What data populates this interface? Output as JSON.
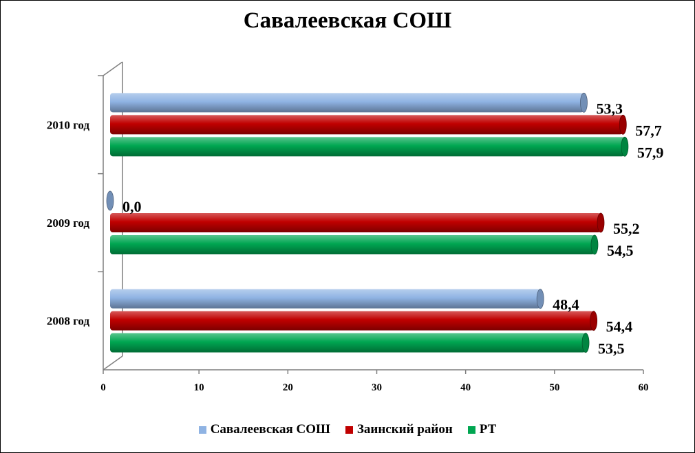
{
  "chart_data": {
    "type": "bar",
    "orientation": "horizontal",
    "title": "Савалеевская СОШ",
    "categories": [
      "2008 год",
      "2009 год",
      "2010 год"
    ],
    "series": [
      {
        "name": "Савалеевская СОШ",
        "values": [
          48.4,
          0.0,
          53.3
        ],
        "labels": [
          "48,4",
          "0,0",
          "53,3"
        ],
        "color": "#8fb3e3"
      },
      {
        "name": "Заинский район",
        "values": [
          54.4,
          55.2,
          57.7
        ],
        "labels": [
          "54,4",
          "55,2",
          "57,7"
        ],
        "color": "#c00000"
      },
      {
        "name": "РТ",
        "values": [
          53.5,
          54.5,
          57.9
        ],
        "labels": [
          "53,5",
          "54,5",
          "57,9"
        ],
        "color": "#00a651"
      }
    ],
    "xlim": [
      0,
      60
    ],
    "xticks": [
      0,
      10,
      20,
      30,
      40,
      50,
      60
    ],
    "grid": false,
    "legend": "bottom"
  }
}
